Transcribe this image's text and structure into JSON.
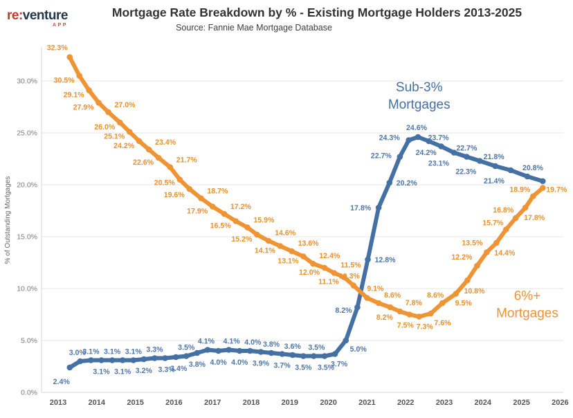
{
  "header": {
    "logo": {
      "primary": "re:",
      "secondary": "venture",
      "sub": "APP"
    },
    "title": "Mortgage Rate Breakdown by % - Existing Mortgage Holders 2013-2025",
    "subtitle": "Source: Fannie Mae Mortgage Database"
  },
  "chart_data": {
    "type": "line",
    "title": "Mortgage Rate Breakdown by % - Existing Mortgage Holders 2013-2025",
    "subtitle": "Source: Fannie Mae Mortgage Database",
    "xlabel": "",
    "ylabel": "% of Outstanding Mortgages",
    "xlim": [
      2012.55,
      2026.35
    ],
    "ylim": [
      0,
      33.5
    ],
    "grid": "horizontal",
    "x_ticks": [
      2013,
      2014,
      2015,
      2016,
      2017,
      2018,
      2019,
      2020,
      2021,
      2022,
      2023,
      2024,
      2025,
      2026
    ],
    "y_ticks": [
      {
        "value": 0,
        "label": "0.0%"
      },
      {
        "value": 5,
        "label": "5.0%"
      },
      {
        "value": 10,
        "label": "10.0%"
      },
      {
        "value": 15,
        "label": "15.0%"
      },
      {
        "value": 20,
        "label": "20.0%"
      },
      {
        "value": 25,
        "label": "25.0%"
      },
      {
        "value": 30,
        "label": "30.0%"
      }
    ],
    "colors": {
      "sub3_line": "#4470A4",
      "sub3_label": "#4F77A6",
      "sixplus_line": "#EE9434",
      "sixplus_label": "#E8922E",
      "grid": "#E4E4E4",
      "zero_line": "#D6D6D6",
      "axis": "#D6D6D6",
      "x_tick_text": "#555555",
      "y_tick_text": "#7A7A7A",
      "y_title_text": "#666666"
    },
    "annotations": [
      {
        "id": "sub3",
        "lines": [
          "Sub-3%",
          "Mortgages"
        ],
        "x": 2022.35,
        "y": 29.0,
        "color": "#4470A4"
      },
      {
        "id": "sixplus",
        "lines": [
          "6%+",
          "Mortgages"
        ],
        "x": 2025.15,
        "y": 8.9,
        "color": "#EE9434"
      }
    ],
    "series": [
      {
        "id": "sub3",
        "name": "Sub-3% Mortgages",
        "points": [
          {
            "x": 2013.3,
            "y": 2.4,
            "label": "2.4%",
            "ox": -12,
            "oy": 24
          },
          {
            "x": 2013.57,
            "y": 3.0,
            "label": "3.0%",
            "ox": -4,
            "oy": -9
          },
          {
            "x": 2013.85,
            "y": 3.1,
            "label": "3.1%",
            "ox": 0,
            "oy": -9
          },
          {
            "x": 2014.12,
            "y": 3.1,
            "label": "3.1%",
            "ox": 0,
            "oy": 20
          },
          {
            "x": 2014.4,
            "y": 3.1,
            "label": "3.1%",
            "ox": 0,
            "oy": -9
          },
          {
            "x": 2014.67,
            "y": 3.1,
            "label": "3.1%",
            "ox": 0,
            "oy": 20
          },
          {
            "x": 2014.95,
            "y": 3.1,
            "label": "3.1%",
            "ox": 0,
            "oy": -9
          },
          {
            "x": 2015.22,
            "y": 3.2,
            "label": "3.2%",
            "ox": 0,
            "oy": 20
          },
          {
            "x": 2015.5,
            "y": 3.3,
            "label": "3.3%",
            "ox": 0,
            "oy": -9
          },
          {
            "x": 2015.77,
            "y": 3.3,
            "label": "3.3%",
            "ox": 2,
            "oy": 20
          },
          {
            "x": 2016.05,
            "y": 3.4,
            "label": "3.4%",
            "ox": 4,
            "oy": 20
          },
          {
            "x": 2016.32,
            "y": 3.5,
            "label": "3.5%",
            "ox": 0,
            "oy": -9
          },
          {
            "x": 2016.6,
            "y": 3.8,
            "label": "3.8%",
            "ox": 0,
            "oy": 20
          },
          {
            "x": 2016.87,
            "y": 4.1,
            "label": "4.1%",
            "ox": -2,
            "oy": -9
          },
          {
            "x": 2017.15,
            "y": 4.0,
            "label": "4.0%",
            "ox": 0,
            "oy": 20
          },
          {
            "x": 2017.42,
            "y": 4.1,
            "label": "4.1%",
            "ox": 4,
            "oy": -9
          },
          {
            "x": 2017.7,
            "y": 4.0,
            "label": "4.0%",
            "ox": 0,
            "oy": 20
          },
          {
            "x": 2017.97,
            "y": 4.0,
            "label": "4.0%",
            "ox": 4,
            "oy": -9
          },
          {
            "x": 2018.25,
            "y": 3.9,
            "label": "3.9%",
            "ox": 0,
            "oy": 20
          },
          {
            "x": 2018.52,
            "y": 3.8,
            "label": "3.8%",
            "ox": 0,
            "oy": -9
          },
          {
            "x": 2018.8,
            "y": 3.7,
            "label": "3.7%",
            "ox": 0,
            "oy": 20
          },
          {
            "x": 2019.07,
            "y": 3.6,
            "label": "3.6%",
            "ox": 0,
            "oy": -9
          },
          {
            "x": 2019.35,
            "y": 3.5,
            "label": "3.5%",
            "ox": 0,
            "oy": 20
          },
          {
            "x": 2019.62,
            "y": 3.5,
            "label": "3.5%",
            "ox": 4,
            "oy": -9
          },
          {
            "x": 2019.9,
            "y": 3.5,
            "label": "3.5%",
            "ox": 2,
            "oy": 20
          },
          {
            "x": 2020.17,
            "y": 3.7,
            "label": "3.7%",
            "ox": 6,
            "oy": 18
          },
          {
            "x": 2020.45,
            "y": 5.0,
            "label": "5.0%",
            "ox": 18,
            "oy": 16
          },
          {
            "x": 2020.75,
            "y": 8.2,
            "label": "8.2%",
            "ox": -20,
            "oy": 8
          },
          {
            "x": 2021.02,
            "y": 12.8,
            "label": "12.8%",
            "ox": 25,
            "oy": 4
          },
          {
            "x": 2021.3,
            "y": 17.8,
            "label": "17.8%",
            "ox": -26,
            "oy": 4
          },
          {
            "x": 2021.58,
            "y": 20.2,
            "label": "20.2%",
            "ox": 25,
            "oy": 4
          },
          {
            "x": 2021.85,
            "y": 22.7,
            "label": "22.7%",
            "ox": -27,
            "oy": 2
          },
          {
            "x": 2022.08,
            "y": 24.3,
            "label": "24.3%",
            "ox": -28,
            "oy": 0
          },
          {
            "x": 2022.32,
            "y": 24.6,
            "label": "24.6%",
            "ox": -2,
            "oy": -10
          },
          {
            "x": 2022.6,
            "y": 24.2,
            "label": "24.2%",
            "ox": -4,
            "oy": 20
          },
          {
            "x": 2022.92,
            "y": 23.7,
            "label": "23.7%",
            "ox": -4,
            "oy": -9
          },
          {
            "x": 2023.25,
            "y": 23.1,
            "label": "23.1%",
            "ox": -22,
            "oy": 19
          },
          {
            "x": 2023.58,
            "y": 22.7,
            "label": "22.7%",
            "ox": 0,
            "oy": -9
          },
          {
            "x": 2023.92,
            "y": 22.3,
            "label": "22.3%",
            "ox": -20,
            "oy": 19
          },
          {
            "x": 2024.32,
            "y": 21.8,
            "label": "21.8%",
            "ox": -2,
            "oy": -10
          },
          {
            "x": 2024.72,
            "y": 21.4,
            "label": "21.4%",
            "ox": -24,
            "oy": 19
          },
          {
            "x": 2025.15,
            "y": 20.8,
            "label": "20.8%",
            "ox": 8,
            "oy": -9
          },
          {
            "x": 2025.55,
            "y": 20.35,
            "label": null,
            "ox": 0,
            "oy": 0
          }
        ]
      },
      {
        "id": "sixplus",
        "name": "6%+ Mortgages",
        "points": [
          {
            "x": 2013.3,
            "y": 32.3,
            "label": "32.3%",
            "ox": -18,
            "oy": -10
          },
          {
            "x": 2013.55,
            "y": 30.5,
            "label": "30.5%",
            "ox": -22,
            "oy": 10
          },
          {
            "x": 2013.8,
            "y": 29.1,
            "label": "29.1%",
            "ox": -22,
            "oy": 10
          },
          {
            "x": 2014.05,
            "y": 27.9,
            "label": "27.9%",
            "ox": -22,
            "oy": 10
          },
          {
            "x": 2014.3,
            "y": 27.0,
            "label": "27.0%",
            "ox": 24,
            "oy": -7
          },
          {
            "x": 2014.6,
            "y": 26.0,
            "label": "26.0%",
            "ox": -22,
            "oy": 10
          },
          {
            "x": 2014.85,
            "y": 25.1,
            "label": "25.1%",
            "ox": -22,
            "oy": 10
          },
          {
            "x": 2015.1,
            "y": 24.2,
            "label": "24.2%",
            "ox": -22,
            "oy": 10
          },
          {
            "x": 2015.35,
            "y": 23.4,
            "label": "23.4%",
            "ox": 24,
            "oy": -7
          },
          {
            "x": 2015.6,
            "y": 22.6,
            "label": "22.6%",
            "ox": -22,
            "oy": 10
          },
          {
            "x": 2015.9,
            "y": 21.7,
            "label": "21.7%",
            "ox": 24,
            "oy": -7
          },
          {
            "x": 2016.15,
            "y": 20.5,
            "label": "20.5%",
            "ox": -22,
            "oy": 8
          },
          {
            "x": 2016.4,
            "y": 19.6,
            "label": "19.6%",
            "ox": -22,
            "oy": 12
          },
          {
            "x": 2016.7,
            "y": 18.7,
            "label": "18.7%",
            "ox": 24,
            "oy": -7
          },
          {
            "x": 2017.0,
            "y": 17.9,
            "label": "17.9%",
            "ox": -22,
            "oy": 10
          },
          {
            "x": 2017.3,
            "y": 17.2,
            "label": "17.2%",
            "ox": 24,
            "oy": -7
          },
          {
            "x": 2017.6,
            "y": 16.5,
            "label": "16.5%",
            "ox": -22,
            "oy": 10
          },
          {
            "x": 2017.9,
            "y": 15.9,
            "label": "15.9%",
            "ox": 24,
            "oy": -7
          },
          {
            "x": 2018.15,
            "y": 15.2,
            "label": "15.2%",
            "ox": -22,
            "oy": 10
          },
          {
            "x": 2018.45,
            "y": 14.6,
            "label": "14.6%",
            "ox": 24,
            "oy": -8
          },
          {
            "x": 2018.75,
            "y": 14.1,
            "label": "14.1%",
            "ox": -22,
            "oy": 10
          },
          {
            "x": 2019.05,
            "y": 13.6,
            "label": "13.6%",
            "ox": 24,
            "oy": -8
          },
          {
            "x": 2019.35,
            "y": 13.1,
            "label": "13.1%",
            "ox": -22,
            "oy": 10
          },
          {
            "x": 2019.6,
            "y": 12.4,
            "label": "12.4%",
            "ox": 24,
            "oy": -8
          },
          {
            "x": 2019.9,
            "y": 12.0,
            "label": "12.0%",
            "ox": -22,
            "oy": 10
          },
          {
            "x": 2020.15,
            "y": 11.5,
            "label": "11.5%",
            "ox": 24,
            "oy": -8
          },
          {
            "x": 2020.4,
            "y": 11.1,
            "label": "11.1%",
            "ox": -22,
            "oy": 10
          },
          {
            "x": 2020.65,
            "y": 10.3,
            "label": "10.3%",
            "ox": -6,
            "oy": -10
          },
          {
            "x": 2021.0,
            "y": 9.1,
            "label": "9.1%",
            "ox": 12,
            "oy": -10
          },
          {
            "x": 2021.3,
            "y": 8.6,
            "label": "8.6%",
            "ox": 20,
            "oy": -8
          },
          {
            "x": 2021.6,
            "y": 8.2,
            "label": "8.2%",
            "ox": -8,
            "oy": 18
          },
          {
            "x": 2021.85,
            "y": 7.8,
            "label": "7.8%",
            "ox": 20,
            "oy": -9
          },
          {
            "x": 2022.1,
            "y": 7.5,
            "label": "7.5%",
            "ox": -6,
            "oy": 19
          },
          {
            "x": 2022.35,
            "y": 7.3,
            "label": "7.3%",
            "ox": 8,
            "oy": 18
          },
          {
            "x": 2022.65,
            "y": 7.6,
            "label": "7.6%",
            "ox": 17,
            "oy": 17
          },
          {
            "x": 2022.95,
            "y": 8.6,
            "label": "8.6%",
            "ox": -10,
            "oy": -8
          },
          {
            "x": 2023.3,
            "y": 9.5,
            "label": "9.5%",
            "ox": 11,
            "oy": 17
          },
          {
            "x": 2023.6,
            "y": 10.8,
            "label": "10.8%",
            "ox": 10,
            "oy": 19
          },
          {
            "x": 2023.85,
            "y": 12.2,
            "label": "12.2%",
            "ox": -22,
            "oy": -9
          },
          {
            "x": 2024.1,
            "y": 13.5,
            "label": "13.5%",
            "ox": -21,
            "oy": -10
          },
          {
            "x": 2024.35,
            "y": 14.4,
            "label": "14.4%",
            "ox": 12,
            "oy": 18
          },
          {
            "x": 2024.6,
            "y": 15.7,
            "label": "15.7%",
            "ox": -19,
            "oy": -6
          },
          {
            "x": 2024.85,
            "y": 16.8,
            "label": "16.8%",
            "ox": -18,
            "oy": -8
          },
          {
            "x": 2025.1,
            "y": 17.8,
            "label": "17.8%",
            "ox": 13,
            "oy": 18
          },
          {
            "x": 2025.3,
            "y": 18.9,
            "label": "18.9%",
            "ox": -19,
            "oy": -6
          },
          {
            "x": 2025.55,
            "y": 19.7,
            "label": "19.7%",
            "ox": 20,
            "oy": 6
          }
        ]
      }
    ]
  }
}
